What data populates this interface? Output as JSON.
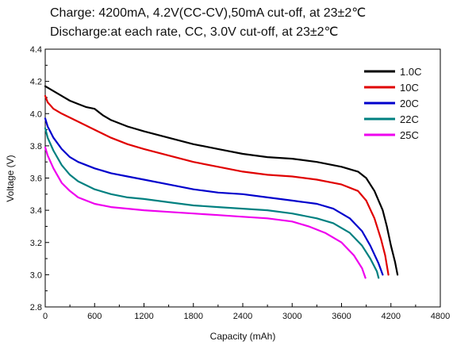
{
  "chart_data": {
    "type": "line",
    "title": "Charge: 4200mA, 4.2V(CC-CV),50mA cut-off, at 23±2℃",
    "subtitle": "Discharge:at each rate, CC, 3.0V cut-off, at 23±2℃",
    "xlabel": "Capacity (mAh)",
    "ylabel": "Voltage (V)",
    "xlim": [
      0,
      4800
    ],
    "ylim": [
      2.8,
      4.4
    ],
    "xticks": [
      "0",
      "600",
      "1200",
      "1800",
      "2400",
      "3000",
      "3600",
      "4200",
      "4800"
    ],
    "yticks": [
      "2.8",
      "3.0",
      "3.2",
      "3.4",
      "3.6",
      "3.8",
      "4.0",
      "4.2",
      "4.4"
    ],
    "xtick_values": [
      0,
      600,
      1200,
      1800,
      2400,
      3000,
      3600,
      4200,
      4800
    ],
    "ytick_values": [
      2.8,
      3.0,
      3.2,
      3.4,
      3.6,
      3.8,
      4.0,
      4.2,
      4.4
    ],
    "grid": false,
    "legend_position": "top-right",
    "series": [
      {
        "name": "1.0C",
        "color": "#000000",
        "points": [
          [
            0,
            4.17
          ],
          [
            100,
            4.14
          ],
          [
            200,
            4.11
          ],
          [
            300,
            4.08
          ],
          [
            400,
            4.06
          ],
          [
            500,
            4.04
          ],
          [
            600,
            4.03
          ],
          [
            700,
            3.99
          ],
          [
            800,
            3.96
          ],
          [
            1000,
            3.92
          ],
          [
            1200,
            3.89
          ],
          [
            1500,
            3.85
          ],
          [
            1800,
            3.81
          ],
          [
            2100,
            3.78
          ],
          [
            2400,
            3.75
          ],
          [
            2700,
            3.73
          ],
          [
            3000,
            3.72
          ],
          [
            3300,
            3.7
          ],
          [
            3600,
            3.67
          ],
          [
            3800,
            3.64
          ],
          [
            3900,
            3.6
          ],
          [
            4000,
            3.52
          ],
          [
            4100,
            3.4
          ],
          [
            4150,
            3.3
          ],
          [
            4200,
            3.18
          ],
          [
            4250,
            3.08
          ],
          [
            4280,
            3.0
          ]
        ]
      },
      {
        "name": "10C",
        "color": "#e00000",
        "points": [
          [
            0,
            4.11
          ],
          [
            30,
            4.07
          ],
          [
            100,
            4.03
          ],
          [
            200,
            4.0
          ],
          [
            400,
            3.95
          ],
          [
            600,
            3.9
          ],
          [
            800,
            3.85
          ],
          [
            1000,
            3.81
          ],
          [
            1200,
            3.78
          ],
          [
            1500,
            3.74
          ],
          [
            1800,
            3.7
          ],
          [
            2100,
            3.67
          ],
          [
            2400,
            3.64
          ],
          [
            2700,
            3.62
          ],
          [
            3000,
            3.61
          ],
          [
            3300,
            3.59
          ],
          [
            3600,
            3.56
          ],
          [
            3800,
            3.52
          ],
          [
            3900,
            3.46
          ],
          [
            4000,
            3.35
          ],
          [
            4080,
            3.22
          ],
          [
            4130,
            3.12
          ],
          [
            4170,
            3.0
          ]
        ]
      },
      {
        "name": "20C",
        "color": "#0000cc",
        "points": [
          [
            0,
            3.97
          ],
          [
            30,
            3.92
          ],
          [
            100,
            3.85
          ],
          [
            200,
            3.78
          ],
          [
            300,
            3.73
          ],
          [
            400,
            3.7
          ],
          [
            600,
            3.66
          ],
          [
            800,
            3.63
          ],
          [
            1000,
            3.61
          ],
          [
            1200,
            3.59
          ],
          [
            1500,
            3.56
          ],
          [
            1800,
            3.53
          ],
          [
            2100,
            3.51
          ],
          [
            2400,
            3.5
          ],
          [
            2700,
            3.48
          ],
          [
            3000,
            3.46
          ],
          [
            3300,
            3.44
          ],
          [
            3500,
            3.41
          ],
          [
            3700,
            3.35
          ],
          [
            3850,
            3.27
          ],
          [
            3950,
            3.18
          ],
          [
            4050,
            3.07
          ],
          [
            4100,
            3.0
          ]
        ]
      },
      {
        "name": "22C",
        "color": "#008080",
        "points": [
          [
            0,
            3.91
          ],
          [
            30,
            3.85
          ],
          [
            100,
            3.77
          ],
          [
            200,
            3.68
          ],
          [
            300,
            3.62
          ],
          [
            400,
            3.58
          ],
          [
            600,
            3.53
          ],
          [
            800,
            3.5
          ],
          [
            1000,
            3.48
          ],
          [
            1200,
            3.47
          ],
          [
            1500,
            3.45
          ],
          [
            1800,
            3.43
          ],
          [
            2100,
            3.42
          ],
          [
            2400,
            3.41
          ],
          [
            2700,
            3.4
          ],
          [
            3000,
            3.38
          ],
          [
            3300,
            3.35
          ],
          [
            3500,
            3.32
          ],
          [
            3700,
            3.26
          ],
          [
            3850,
            3.18
          ],
          [
            3950,
            3.1
          ],
          [
            4030,
            3.02
          ],
          [
            4050,
            2.98
          ]
        ]
      },
      {
        "name": "25C",
        "color": "#ee00ee",
        "points": [
          [
            0,
            3.79
          ],
          [
            30,
            3.74
          ],
          [
            100,
            3.66
          ],
          [
            200,
            3.57
          ],
          [
            300,
            3.52
          ],
          [
            400,
            3.48
          ],
          [
            600,
            3.44
          ],
          [
            800,
            3.42
          ],
          [
            1000,
            3.41
          ],
          [
            1200,
            3.4
          ],
          [
            1500,
            3.39
          ],
          [
            1800,
            3.38
          ],
          [
            2100,
            3.37
          ],
          [
            2400,
            3.36
          ],
          [
            2700,
            3.35
          ],
          [
            3000,
            3.33
          ],
          [
            3200,
            3.3
          ],
          [
            3400,
            3.26
          ],
          [
            3600,
            3.2
          ],
          [
            3750,
            3.12
          ],
          [
            3850,
            3.04
          ],
          [
            3890,
            2.98
          ]
        ]
      }
    ]
  }
}
